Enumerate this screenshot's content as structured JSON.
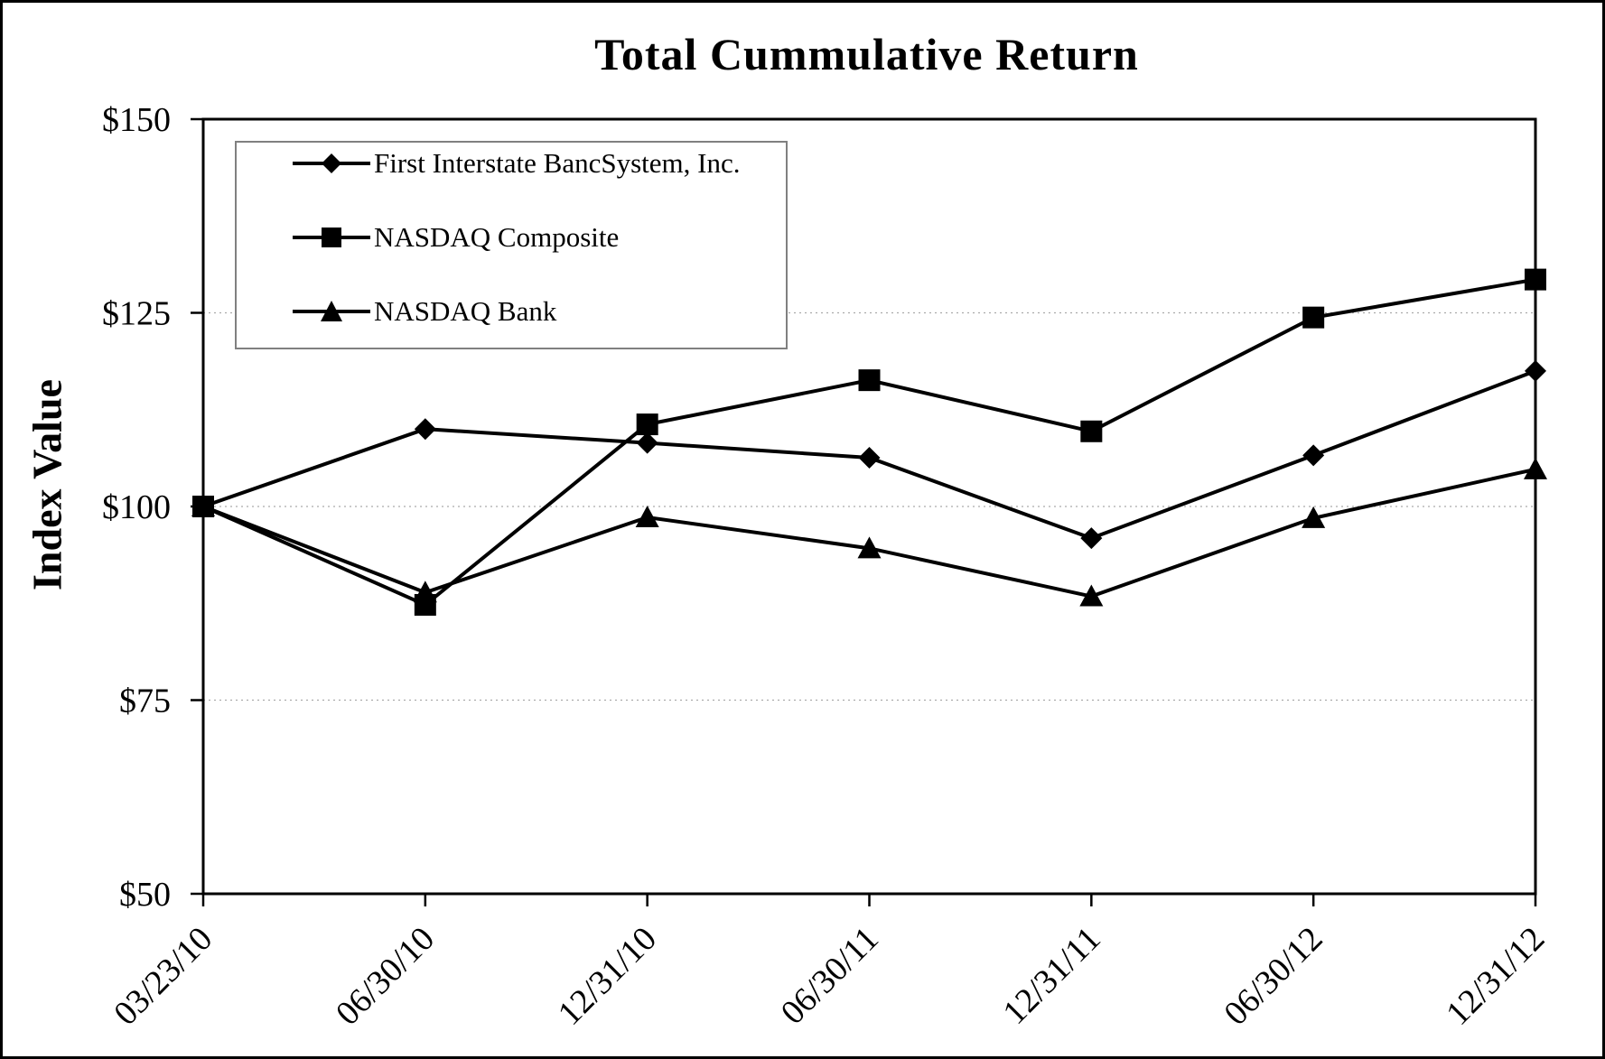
{
  "chart_data": {
    "type": "line",
    "title": "Total Cummulative Return",
    "ylabel": "Index Value",
    "xlabel": "",
    "x_categories": [
      "03/23/10",
      "06/30/10",
      "12/31/10",
      "06/30/11",
      "12/31/11",
      "06/30/12",
      "12/31/12"
    ],
    "ylim": [
      50,
      150
    ],
    "yticks": [
      50,
      75,
      100,
      125,
      150
    ],
    "ytick_labels": [
      "$50",
      "$75",
      "$100",
      "$125",
      "$150"
    ],
    "gridlines_at": [
      75,
      100,
      125
    ],
    "grid_on": true,
    "legend_position": "top-left",
    "colors": {
      "background": "#ffffff",
      "line": "#000000",
      "grid": "#aaaaaa",
      "legend_border": "#808080"
    },
    "series": [
      {
        "name": "First Interstate BancSystem, Inc.",
        "marker": "diamond",
        "values": [
          100,
          110.0,
          108.2,
          106.3,
          95.9,
          106.6,
          117.5
        ]
      },
      {
        "name": "NASDAQ Composite",
        "marker": "square",
        "values": [
          100,
          87.3,
          110.6,
          116.3,
          109.7,
          124.4,
          129.3
        ]
      },
      {
        "name": "NASDAQ Bank",
        "marker": "triangle",
        "values": [
          100,
          88.9,
          98.6,
          94.6,
          88.4,
          98.5,
          104.8
        ]
      }
    ]
  }
}
